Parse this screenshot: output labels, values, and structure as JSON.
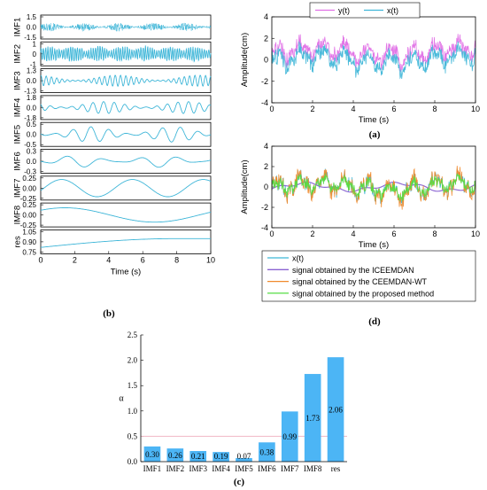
{
  "chart_data": [
    {
      "id": "b",
      "type": "line",
      "panel_label": "(b)",
      "xlabel": "Time (s)",
      "xlim": [
        0,
        10
      ],
      "xticks": [
        "0",
        "2",
        "4",
        "6",
        "8",
        "10"
      ],
      "series": [
        {
          "name": "IMF1",
          "ticks": [
            "1.5",
            "0.0",
            "-1.5"
          ],
          "ylim": [
            -1.5,
            1.5
          ],
          "amplitude": 0.55,
          "cycles": 160,
          "waveform": "noise"
        },
        {
          "name": "IMF2",
          "ticks": [
            "1",
            "0",
            "-1"
          ],
          "ylim": [
            -1,
            1
          ],
          "amplitude": 0.7,
          "cycles": 75,
          "waveform": "bursty"
        },
        {
          "name": "IMF3",
          "ticks": [
            "1.3",
            "0.0",
            "-1.3"
          ],
          "ylim": [
            -1.3,
            1.3
          ],
          "amplitude": 0.6,
          "cycles": 32,
          "waveform": "modulated"
        },
        {
          "name": "IMF4",
          "ticks": [
            "1.8",
            "0.0",
            "-1.8"
          ],
          "ylim": [
            -1.8,
            1.8
          ],
          "amplitude": 0.9,
          "cycles": 16,
          "waveform": "modulated"
        },
        {
          "name": "IMF5",
          "ticks": [
            "0.5",
            "0.0",
            "-0.5"
          ],
          "ylim": [
            -0.5,
            0.5
          ],
          "amplitude": 0.32,
          "cycles": 9.5,
          "waveform": "modulated"
        },
        {
          "name": "IMF6",
          "ticks": [
            "0.3",
            "0.0",
            "-0.3"
          ],
          "ylim": [
            -0.3,
            0.3
          ],
          "amplitude": 0.15,
          "cycles": 4.6,
          "waveform": "modulated"
        },
        {
          "name": "IMF7",
          "ticks": [
            "0.25",
            "0.00",
            "-0.25"
          ],
          "ylim": [
            -0.25,
            0.25
          ],
          "amplitude": 0.18,
          "cycles": 2.4,
          "waveform": "sine"
        },
        {
          "name": "IMF8",
          "ticks": [
            "0.25",
            "0.00",
            "-0.25"
          ],
          "ylim": [
            -0.25,
            0.25
          ],
          "amplitude": 0.15,
          "cycles": 0.95,
          "waveform": "sine"
        },
        {
          "name": "res",
          "ticks": [
            "1.05",
            "0.90",
            "0.75"
          ],
          "ylim": [
            0.75,
            1.05
          ],
          "waveform": "trend",
          "start": 0.83,
          "end": 0.94
        }
      ]
    },
    {
      "id": "a",
      "type": "line",
      "panel_label": "(a)",
      "xlabel": "Time (s)",
      "ylabel": "Amplitude(cm)",
      "xlim": [
        0,
        10
      ],
      "ylim": [
        -4,
        4
      ],
      "xticks": [
        "0",
        "2",
        "4",
        "6",
        "8",
        "10"
      ],
      "yticks": [
        "4",
        "2",
        "0",
        "-2",
        "-4"
      ],
      "legend_position": "top",
      "series": [
        {
          "name": "y(t)",
          "color": "#e070e6",
          "offset": 0.7,
          "amplitude": 1.4
        },
        {
          "name": "x(t)",
          "color": "#3fb6d8",
          "offset": 0.0,
          "amplitude": 1.4
        }
      ]
    },
    {
      "id": "d",
      "type": "line",
      "panel_label": "(d)",
      "xlabel": "Time (s)",
      "ylabel": "Amplitude(cm)",
      "xlim": [
        0,
        10
      ],
      "ylim": [
        -4,
        4
      ],
      "xticks": [
        "0",
        "2",
        "4",
        "6",
        "8",
        "10"
      ],
      "yticks": [
        "4",
        "2",
        "0",
        "-2",
        "-4"
      ],
      "legend_position": "bottom",
      "series": [
        {
          "name": "x(t)",
          "color": "#3fb6d8",
          "amplitude": 1.5
        },
        {
          "name": "signal obtained by the ICEEMDAN",
          "color": "#8a63d2",
          "amplitude": 0.35
        },
        {
          "name": "signal obtained by the CEEMDAN-WT",
          "color": "#f08a2c",
          "amplitude": 1.7
        },
        {
          "name": "signal obtained by the proposed method",
          "color": "#55dd44",
          "amplitude": 1.1
        }
      ]
    },
    {
      "id": "c",
      "type": "bar",
      "panel_label": "(c)",
      "ylabel": "α",
      "categories": [
        "IMF1",
        "IMF2",
        "IMF3",
        "IMF4",
        "IMF5",
        "IMF6",
        "IMF7",
        "IMF8",
        "res"
      ],
      "values": [
        0.3,
        0.26,
        0.21,
        0.19,
        0.07,
        0.38,
        0.99,
        1.73,
        2.06
      ],
      "value_labels": [
        "0.30",
        "0.26",
        "0.21",
        "0.19",
        "0.07",
        "0.38",
        "0.99",
        "1.73",
        "2.06"
      ],
      "ylim": [
        0,
        2.5
      ],
      "yticks": [
        "0.0",
        "0.5",
        "1.0",
        "1.5",
        "2.0",
        "2.5"
      ],
      "threshold": 0.5,
      "threshold_color": "#f1b7c4",
      "bar_color": "#4cb5f5"
    }
  ],
  "colors": {
    "signal": "#3fb6d8",
    "axis": "#000000"
  }
}
